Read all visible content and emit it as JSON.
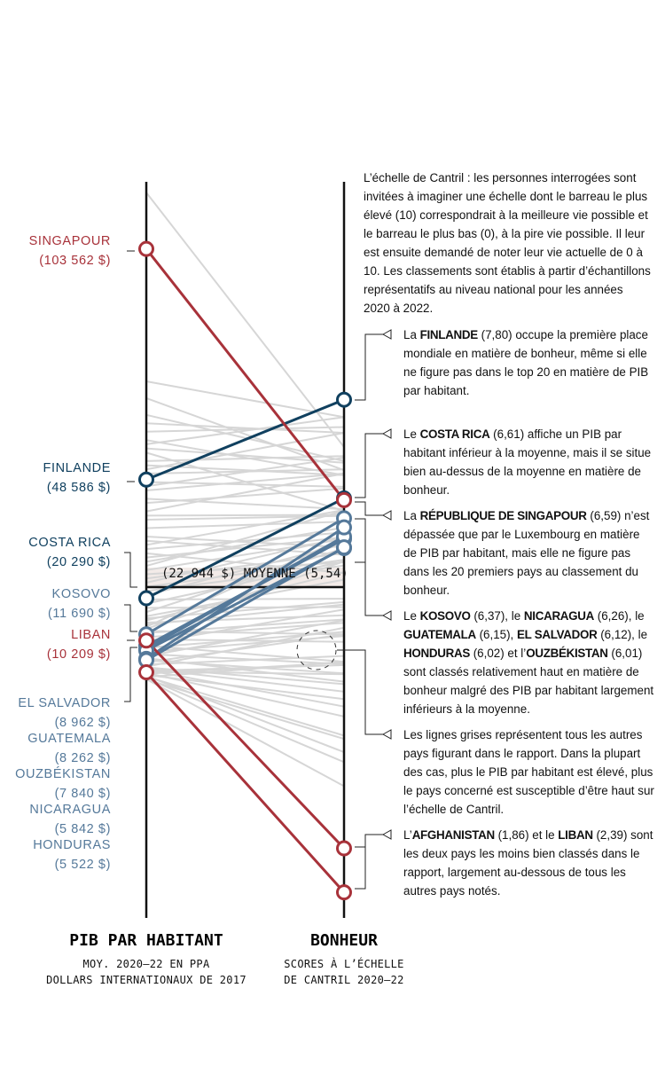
{
  "chart_data": {
    "type": "slope",
    "left_axis": {
      "title": "PIB PAR HABITANT",
      "subtitle": [
        "MOY. 2020–22 EN PPA",
        "DOLLARS INTERNATIONAUX DE 2017"
      ]
    },
    "right_axis": {
      "title": "BONHEUR",
      "subtitle": [
        "SCORES À L’ÉCHELLE",
        "DE CANTRIL 2020–22"
      ]
    },
    "mean": {
      "label": "(22 944 $) MOYENNE (5,54)",
      "gdp": 22944,
      "happiness": 5.54
    },
    "colors": {
      "red": "#a8323a",
      "dark_blue": "#10405f",
      "light_blue": "#55799a",
      "gray": "#d6d6d6",
      "mean_band": "#f3ebe8"
    },
    "highlighted": [
      {
        "name": "SINGAPOUR",
        "gdp_label": "(103 562 $)",
        "gdp": 103562,
        "happiness": 6.59,
        "color": "red"
      },
      {
        "name": "FINLANDE",
        "gdp_label": "(48 586 $)",
        "gdp": 48586,
        "happiness": 7.8,
        "color": "dark_blue"
      },
      {
        "name": "COSTA RICA",
        "gdp_label": "(20 290 $)",
        "gdp": 20290,
        "happiness": 6.61,
        "color": "dark_blue"
      },
      {
        "name": "KOSOVO",
        "gdp_label": "(11 690 $)",
        "gdp": 11690,
        "happiness": 6.37,
        "color": "light_blue"
      },
      {
        "name": "LIBAN",
        "gdp_label": "(10 209 $)",
        "gdp": 10209,
        "happiness": 2.39,
        "color": "red"
      },
      {
        "name": "EL SALVADOR",
        "gdp_label": "(8 962 $)",
        "gdp": 8962,
        "happiness": 6.12,
        "color": "light_blue"
      },
      {
        "name": "GUATEMALA",
        "gdp_label": "(8 262 $)",
        "gdp": 8262,
        "happiness": 6.15,
        "color": "light_blue"
      },
      {
        "name": "OUZBÉKISTAN",
        "gdp_label": "(7 840 $)",
        "gdp": 7840,
        "happiness": 6.01,
        "color": "light_blue"
      },
      {
        "name": "NICARAGUA",
        "gdp_label": "(5 842 $)",
        "gdp": 5842,
        "happiness": 6.26,
        "color": "light_blue"
      },
      {
        "name": "HONDURAS",
        "gdp_label": "(5 522 $)",
        "gdp": 5522,
        "happiness": 6.02,
        "color": "light_blue"
      },
      {
        "name": "AFGHANISTAN",
        "gdp": 2650,
        "happiness": 1.86,
        "color": "red"
      }
    ],
    "other_countries": [
      [
        117000,
        7.23
      ],
      [
        72000,
        7.59
      ],
      [
        68000,
        6.95
      ],
      [
        64000,
        7.06
      ],
      [
        62000,
        7.4
      ],
      [
        60000,
        7.47
      ],
      [
        58000,
        6.89
      ],
      [
        57000,
        7.59
      ],
      [
        56000,
        7.04
      ],
      [
        55000,
        6.46
      ],
      [
        53000,
        7.12
      ],
      [
        52000,
        6.89
      ],
      [
        51000,
        7.4
      ],
      [
        50000,
        6.96
      ],
      [
        48000,
        6.75
      ],
      [
        47000,
        7.1
      ],
      [
        46000,
        6.91
      ],
      [
        44000,
        6.48
      ],
      [
        43000,
        6.73
      ],
      [
        41000,
        6.91
      ],
      [
        40000,
        6.41
      ],
      [
        39000,
        6.4
      ],
      [
        37000,
        6.33
      ],
      [
        35000,
        6.02
      ],
      [
        34000,
        5.93
      ],
      [
        33000,
        6.47
      ],
      [
        32000,
        6.2
      ],
      [
        31000,
        5.71
      ],
      [
        30000,
        6.14
      ],
      [
        29000,
        6.26
      ],
      [
        28000,
        6.46
      ],
      [
        27000,
        6.12
      ],
      [
        26000,
        5.84
      ],
      [
        25000,
        5.95
      ],
      [
        24000,
        6.14
      ],
      [
        23000,
        5.87
      ],
      [
        22000,
        5.8
      ],
      [
        21000,
        6.06
      ],
      [
        20000,
        5.4
      ],
      [
        19000,
        5.85
      ],
      [
        18000,
        5.3
      ],
      [
        17000,
        6.01
      ],
      [
        16000,
        5.63
      ],
      [
        15500,
        5.36
      ],
      [
        15000,
        5.72
      ],
      [
        14500,
        5.2
      ],
      [
        14000,
        5.33
      ],
      [
        13500,
        6.13
      ],
      [
        13000,
        5.85
      ],
      [
        12500,
        4.97
      ],
      [
        12000,
        5.15
      ],
      [
        11000,
        5.11
      ],
      [
        10500,
        4.88
      ],
      [
        9500,
        5.27
      ],
      [
        9000,
        4.64
      ],
      [
        8500,
        5.0
      ],
      [
        7500,
        4.95
      ],
      [
        7000,
        4.61
      ],
      [
        6500,
        5.14
      ],
      [
        6000,
        4.4
      ],
      [
        5500,
        4.5
      ],
      [
        5000,
        4.97
      ],
      [
        4500,
        4.71
      ],
      [
        4000,
        5.05
      ],
      [
        3800,
        4.37
      ],
      [
        3500,
        4.28
      ],
      [
        3200,
        4.1
      ],
      [
        3000,
        4.6
      ],
      [
        2800,
        4.49
      ],
      [
        2500,
        3.98
      ],
      [
        2300,
        4.63
      ],
      [
        2000,
        4.19
      ],
      [
        1800,
        3.55
      ],
      [
        1600,
        3.75
      ],
      [
        1500,
        4.64
      ],
      [
        1200,
        3.43
      ],
      [
        1000,
        3.14
      ],
      [
        900,
        3.71
      ]
    ]
  },
  "intro": "L’échelle de Cantril : les personnes interrogées sont invitées à imaginer une échelle dont le barreau le plus élevé (10) correspondrait à la meilleure vie possible et le barreau le plus bas (0), à la pire vie possible. Il leur est ensuite demandé de noter leur vie actuelle de 0 à 10. Les classements sont établis à partir d’échantillons représentatifs au niveau national pour les années 2020 à 2022.",
  "annotations": [
    [
      {
        "t": "La "
      },
      {
        "t": "FINLANDE",
        "b": true
      },
      {
        "t": " (7,80) occupe la première place mondiale en matière de bonheur, même si elle ne figure pas dans le top 20 en matière de PIB par habitant."
      }
    ],
    [
      {
        "t": "Le "
      },
      {
        "t": "COSTA RICA",
        "b": true
      },
      {
        "t": " (6,61) affiche un PIB par habitant inférieur à la moyenne, mais il se situe bien au-dessus de la moyenne en matière de bonheur."
      }
    ],
    [
      {
        "t": "La "
      },
      {
        "t": "RÉPUBLIQUE DE SINGAPOUR",
        "b": true
      },
      {
        "t": " (6,59) n’est dépassée que par le Luxembourg en matière de PIB par habitant, mais elle ne figure pas dans les 20 premiers pays au classement du bonheur."
      }
    ],
    [
      {
        "t": "Le "
      },
      {
        "t": "KOSOVO",
        "b": true
      },
      {
        "t": " (6,37), le "
      },
      {
        "t": "NICARAGUA",
        "b": true
      },
      {
        "t": " (6,26), le "
      },
      {
        "t": "GUATEMALA",
        "b": true
      },
      {
        "t": " (6,15), "
      },
      {
        "t": "EL SALVADOR",
        "b": true
      },
      {
        "t": " (6,12), le "
      },
      {
        "t": "HONDURAS",
        "b": true
      },
      {
        "t": " (6,02) et l’"
      },
      {
        "t": "OUZBÉKISTAN",
        "b": true
      },
      {
        "t": " (6,01) sont classés relativement haut en matière de bonheur malgré des PIB par habitant largement inférieurs à la moyenne."
      }
    ],
    [
      {
        "t": "Les lignes grises représentent tous les autres pays figurant dans le rapport. Dans la plupart des cas, plus le PIB par habitant est élevé, plus le pays concerné est susceptible d’être haut sur l’échelle de Cantril."
      }
    ],
    [
      {
        "t": "L’"
      },
      {
        "t": "AFGHANISTAN",
        "b": true
      },
      {
        "t": " (1,86) et le "
      },
      {
        "t": "LIBAN",
        "b": true
      },
      {
        "t": " (2,39) sont les deux pays les moins bien classés dans le rapport, largement au-dessous de tous les autres pays notés."
      }
    ]
  ]
}
